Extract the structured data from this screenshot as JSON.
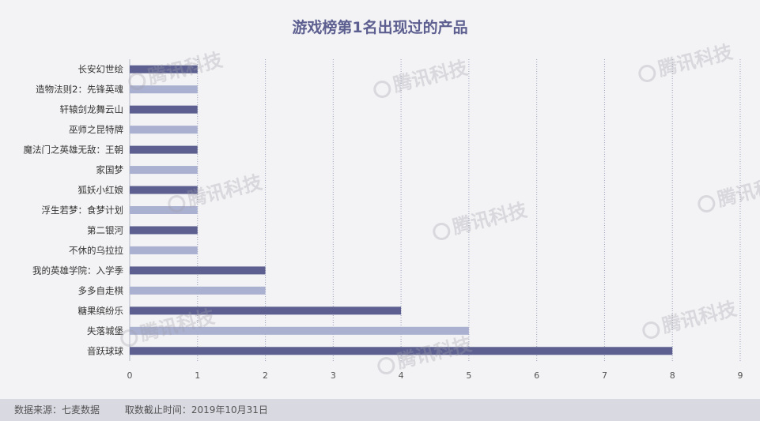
{
  "colors": {
    "series_dark": "#5c5f8f",
    "series_light": "#aab0cf",
    "grid": "#9aa0bb",
    "axis_text": "#555555"
  },
  "watermark": {
    "text": "腾讯科技",
    "icon": "penguin-logo-icon"
  },
  "footer": {
    "source": "数据来源：七麦数据",
    "cutoff": "取数截止时间：2019年10月31日"
  },
  "chart_data": {
    "type": "bar",
    "orientation": "horizontal",
    "title": "游戏榜第1名出现过的产品",
    "categories": [
      "长安幻世绘",
      "造物法则2：先锋英魂",
      "轩辕剑龙舞云山",
      "巫师之昆特牌",
      "魔法门之英雄无敌：王朝",
      "家国梦",
      "狐妖小红娘",
      "浮生若梦：食梦计划",
      "第二银河",
      "不休的乌拉拉",
      "我的英雄学院：入学季",
      "多多自走棋",
      "糖果缤纷乐",
      "失落城堡",
      "音跃球球"
    ],
    "values": [
      1,
      1,
      1,
      1,
      1,
      1,
      1,
      1,
      1,
      1,
      2,
      2,
      4,
      5,
      8
    ],
    "xlim": [
      0,
      9
    ],
    "xticks": [
      "0",
      "1",
      "2",
      "3",
      "4",
      "5",
      "6",
      "7",
      "8",
      "9"
    ],
    "grid": "vertical dotted",
    "legend": "none"
  }
}
